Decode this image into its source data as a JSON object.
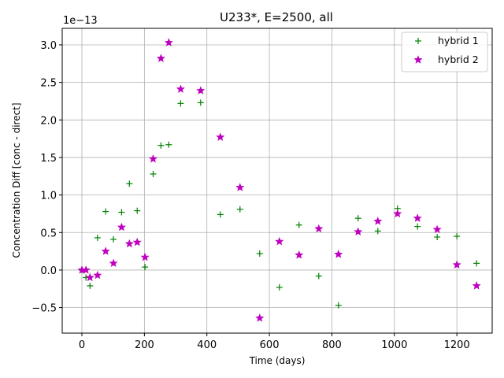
{
  "chart_data": {
    "type": "scatter",
    "title": "U233*, E=2500, all",
    "xlabel": "Time (days)",
    "ylabel": "Concentration Diff [conc - direct]",
    "y_offset_label": "1e−13",
    "xlim": [
      -63,
      1313
    ],
    "ylim": [
      -0.84,
      3.22
    ],
    "xticks": [
      0,
      200,
      400,
      600,
      800,
      1000,
      1200
    ],
    "yticks": [
      -0.5,
      0.0,
      0.5,
      1.0,
      1.5,
      2.0,
      2.5,
      3.0
    ],
    "ytick_labels": [
      "−0.5",
      "0.0",
      "0.5",
      "1.0",
      "1.5",
      "2.0",
      "2.5",
      "3.0"
    ],
    "grid": true,
    "legend_position": "top-right",
    "series": [
      {
        "name": "hybrid 1",
        "marker": "+",
        "color": "#008000",
        "x": [
          0,
          13,
          26,
          50,
          76,
          101,
          127,
          152,
          177,
          202,
          228,
          253,
          278,
          316,
          380,
          443,
          506,
          569,
          632,
          695,
          758,
          821,
          884,
          947,
          1010,
          1074,
          1137,
          1200,
          1263
        ],
        "y": [
          0.0,
          -0.1,
          -0.21,
          0.43,
          0.78,
          0.41,
          0.77,
          1.15,
          0.79,
          0.04,
          1.28,
          1.66,
          1.67,
          2.22,
          2.23,
          0.74,
          0.81,
          0.22,
          -0.23,
          0.6,
          -0.08,
          -0.47,
          0.69,
          0.52,
          0.82,
          0.58,
          0.44,
          0.45,
          0.09
        ]
      },
      {
        "name": "hybrid 2",
        "marker": "*",
        "color": "#bf00bf",
        "x": [
          0,
          13,
          26,
          50,
          76,
          101,
          127,
          152,
          177,
          202,
          228,
          253,
          278,
          316,
          380,
          443,
          506,
          569,
          632,
          695,
          758,
          821,
          884,
          947,
          1010,
          1074,
          1137,
          1200,
          1263
        ],
        "y": [
          0.0,
          0.0,
          -0.1,
          -0.07,
          0.25,
          0.09,
          0.57,
          0.35,
          0.37,
          0.17,
          1.48,
          2.82,
          3.03,
          2.41,
          2.39,
          1.77,
          1.1,
          -0.64,
          0.38,
          0.2,
          0.55,
          0.21,
          0.51,
          0.65,
          0.75,
          0.69,
          0.54,
          0.07,
          -0.21
        ]
      }
    ]
  }
}
